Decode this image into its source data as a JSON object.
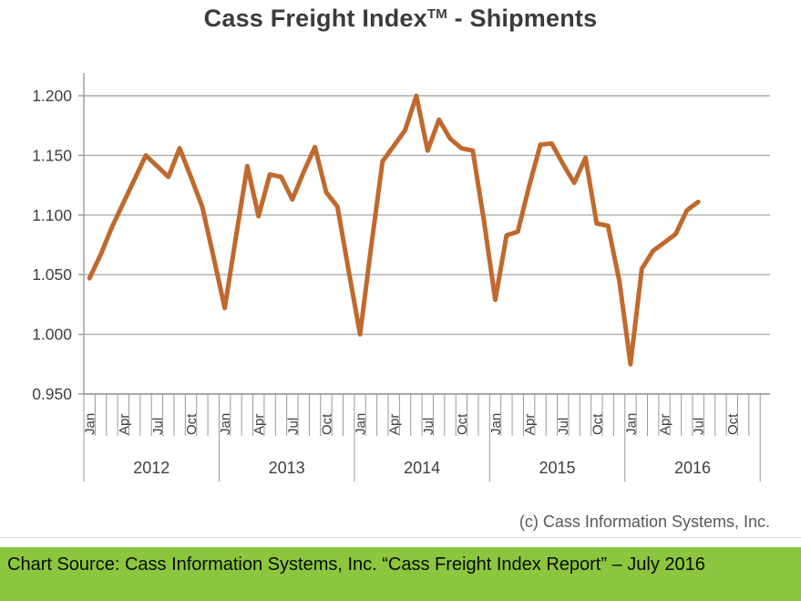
{
  "title": {
    "main": "Cass Freight Index",
    "tm": "TM",
    "suffix": " - Shipments"
  },
  "copyright": "(c) Cass Information Systems, Inc.",
  "banner": {
    "text": "Chart Source: Cass Information Systems, Inc. “Cass Freight Index Report” – July 2016",
    "bg_color": "#8CC63E"
  },
  "chart_data": {
    "type": "line",
    "title": "Cass Freight Index (TM) - Shipments",
    "xlabel": "",
    "ylabel": "",
    "ylim": [
      0.95,
      1.2
    ],
    "y_ticks": [
      "1.200",
      "1.150",
      "1.100",
      "1.050",
      "1.000",
      "0.950"
    ],
    "grid": true,
    "legend": "none",
    "line_color": "#C0692E",
    "grid_color": "#ADADAD",
    "axis_color": "#999999",
    "label_color": "#3f3f3f",
    "month_labels": [
      "Jan",
      "Apr",
      "Jul",
      "Oct"
    ],
    "years": [
      "2012",
      "2013",
      "2014",
      "2015",
      "2016"
    ],
    "x_start": "Jan 2012",
    "x_end": "Jul 2016",
    "series": [
      {
        "name": "Shipments",
        "values": [
          1.047,
          1.067,
          1.09,
          1.11,
          1.13,
          1.15,
          1.141,
          1.132,
          1.156,
          1.132,
          1.107,
          1.065,
          1.022,
          1.082,
          1.141,
          1.099,
          1.134,
          1.132,
          1.113,
          1.136,
          1.157,
          1.119,
          1.107,
          1.053,
          1.0,
          1.074,
          1.145,
          1.158,
          1.171,
          1.2,
          1.154,
          1.18,
          1.164,
          1.156,
          1.154,
          1.095,
          1.029,
          1.083,
          1.086,
          1.124,
          1.159,
          1.16,
          1.143,
          1.127,
          1.148,
          1.093,
          1.091,
          1.045,
          0.975,
          1.055,
          1.07,
          1.077,
          1.084,
          1.104,
          1.111
        ]
      }
    ]
  }
}
